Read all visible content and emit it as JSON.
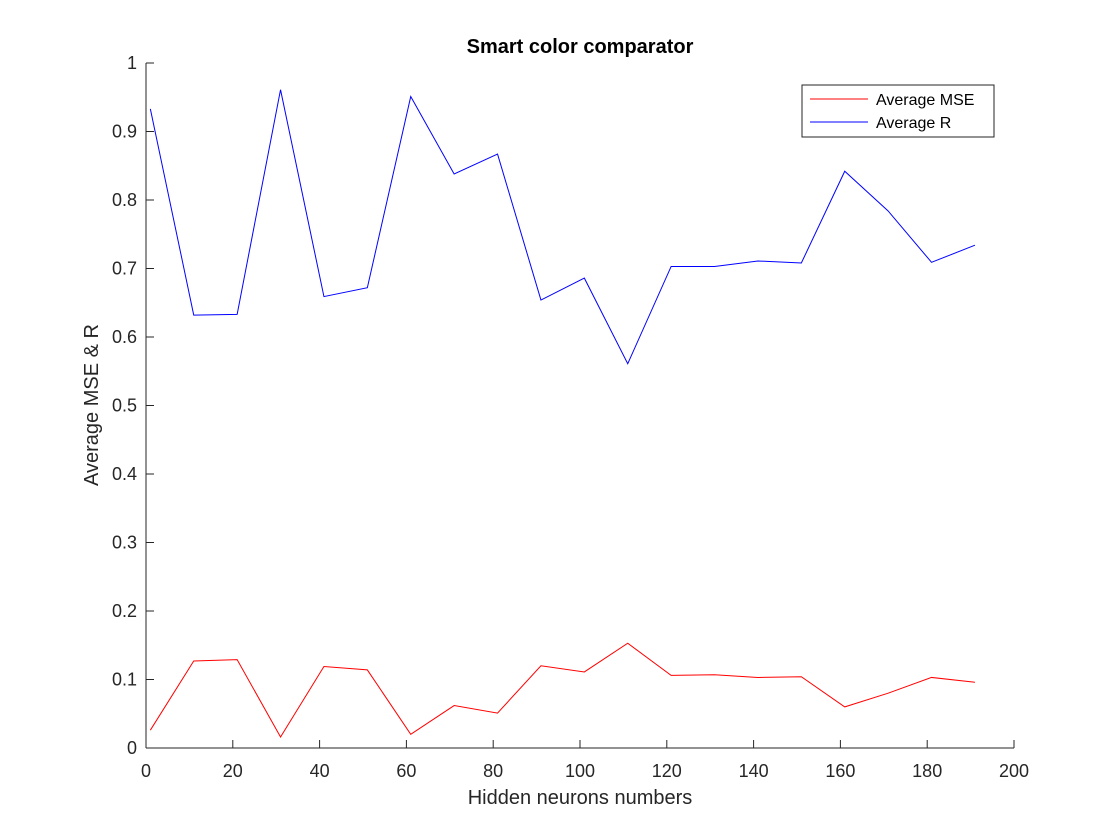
{
  "chart_data": {
    "type": "line",
    "title": "Smart color comparator",
    "xlabel": "Hidden neurons numbers",
    "ylabel": "Average MSE & R",
    "xlim": [
      0,
      200
    ],
    "ylim": [
      0,
      1
    ],
    "xticks": [
      0,
      20,
      40,
      60,
      80,
      100,
      120,
      140,
      160,
      180,
      200
    ],
    "yticks": [
      0,
      0.1,
      0.2,
      0.3,
      0.4,
      0.5,
      0.6,
      0.7,
      0.8,
      0.9,
      1
    ],
    "xtick_labels": [
      "0",
      "20",
      "40",
      "60",
      "80",
      "100",
      "120",
      "140",
      "160",
      "180",
      "200"
    ],
    "ytick_labels": [
      "0",
      "0.1",
      "0.2",
      "0.3",
      "0.4",
      "0.5",
      "0.6",
      "0.7",
      "0.8",
      "0.9",
      "1"
    ],
    "grid": false,
    "legend_position": "top-right",
    "x": [
      1,
      11,
      21,
      31,
      41,
      51,
      61,
      71,
      81,
      91,
      101,
      111,
      121,
      131,
      141,
      151,
      161,
      171,
      181,
      191
    ],
    "series": [
      {
        "name": "Average MSE",
        "color": "#ff0000",
        "values": [
          0.026,
          0.127,
          0.129,
          0.016,
          0.119,
          0.114,
          0.02,
          0.062,
          0.051,
          0.12,
          0.111,
          0.153,
          0.106,
          0.107,
          0.103,
          0.104,
          0.06,
          0.08,
          0.103,
          0.096
        ]
      },
      {
        "name": "Average R",
        "color": "#0000ff",
        "values": [
          0.933,
          0.632,
          0.633,
          0.961,
          0.659,
          0.672,
          0.951,
          0.838,
          0.867,
          0.654,
          0.686,
          0.561,
          0.703,
          0.703,
          0.711,
          0.708,
          0.842,
          0.784,
          0.709,
          0.734
        ]
      }
    ]
  }
}
